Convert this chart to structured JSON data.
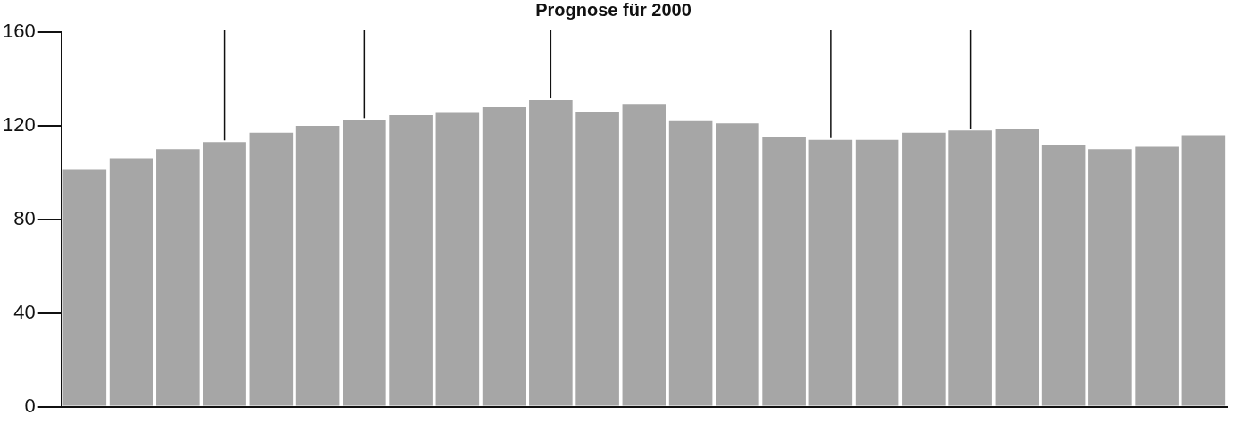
{
  "chart_data": {
    "type": "bar",
    "title": "Prognose für 2000",
    "categories": [
      null,
      null,
      null,
      null,
      null,
      null,
      null,
      null,
      null,
      null,
      null,
      null,
      null,
      null,
      null,
      null,
      null,
      null,
      null,
      null,
      null,
      null,
      null,
      null,
      null
    ],
    "values": [
      101.5,
      106,
      110,
      113,
      117,
      120,
      122.5,
      124.5,
      125.5,
      128,
      131,
      126,
      129,
      122,
      121,
      115,
      114,
      114,
      117,
      118,
      118.5,
      112,
      110,
      111,
      116
    ],
    "color": "#a6a6a6",
    "ylim": [
      0,
      160
    ],
    "yticks": [
      0,
      40,
      80,
      120,
      160
    ],
    "grid": false,
    "legend": false
  }
}
